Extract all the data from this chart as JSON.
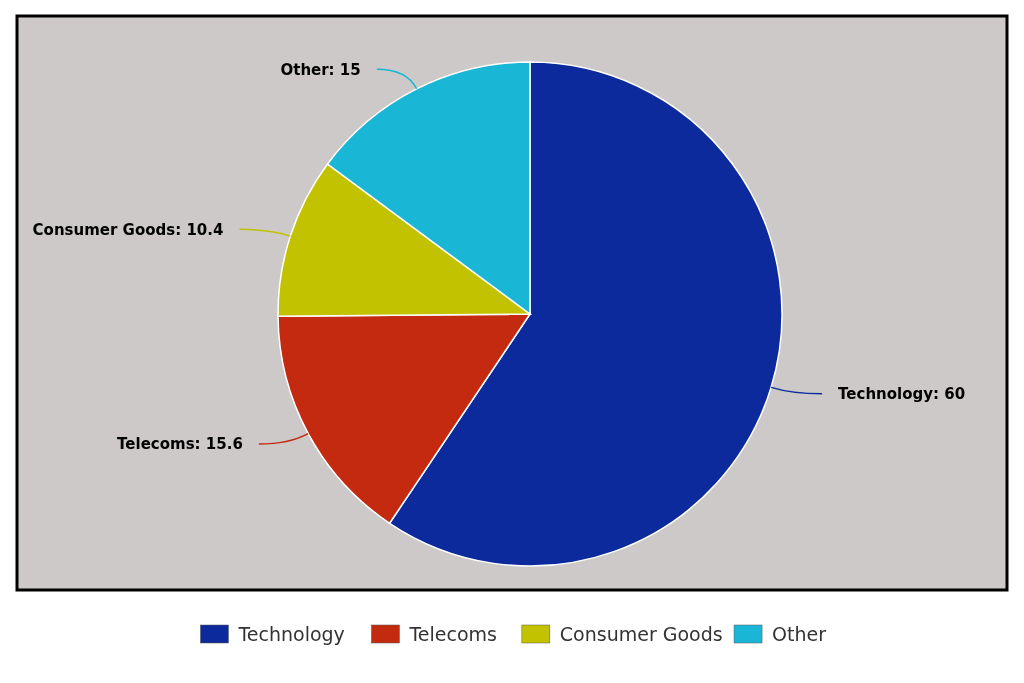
{
  "chart_data": {
    "type": "pie",
    "categories": [
      "Technology",
      "Telecoms",
      "Consumer Goods",
      "Other"
    ],
    "values": [
      60,
      15.6,
      10.4,
      15
    ],
    "colors": [
      "#0c2a9c",
      "#c42a10",
      "#c2c200",
      "#1ab6d6"
    ],
    "value_labels": [
      "Technology: 60",
      "Telecoms: 15.6",
      "Consumer Goods: 10.4",
      "Other: 15"
    ],
    "legend": "bottom"
  }
}
